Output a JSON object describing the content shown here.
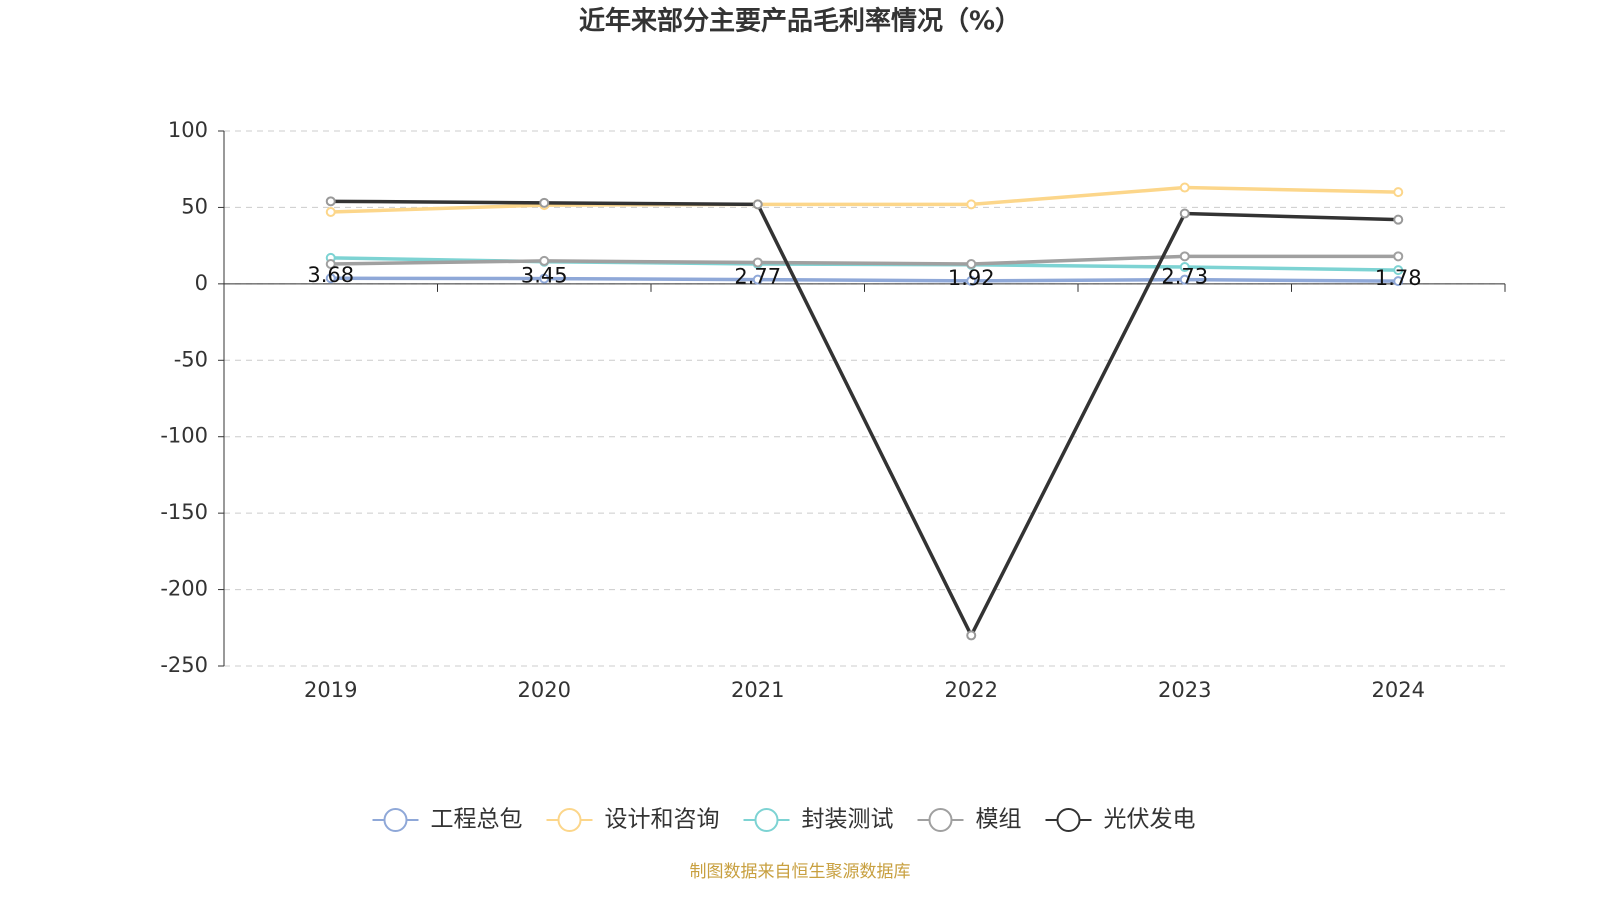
{
  "chart_data": {
    "type": "line",
    "title": "近年来部分主要产品毛利率情况（%）",
    "categories": [
      "2019",
      "2020",
      "2021",
      "2022",
      "2023",
      "2024"
    ],
    "series": [
      {
        "name": "工程总包",
        "color": "#8fa8d8",
        "values": [
          3.68,
          3.45,
          2.77,
          1.92,
          2.73,
          1.78
        ],
        "labels": true
      },
      {
        "name": "设计和咨询",
        "color": "#fcd68a",
        "values": [
          47,
          51.5,
          52,
          52,
          63,
          60
        ]
      },
      {
        "name": "封装测试",
        "color": "#7dd3d3",
        "values": [
          17,
          14.5,
          13,
          12.5,
          11,
          9
        ]
      },
      {
        "name": "模组",
        "color": "#a0a0a0",
        "values": [
          13,
          15,
          14,
          13,
          18,
          18
        ]
      },
      {
        "name": "光伏发电",
        "color": "#333333",
        "values": [
          54,
          53,
          52,
          -230,
          46,
          42
        ]
      }
    ],
    "ylim": [
      -250,
      100
    ],
    "yticks": [
      100,
      50,
      0,
      -50,
      -100,
      -150,
      -200,
      -250
    ],
    "grid": true,
    "legend": "bottom",
    "source": "制图数据来自恒生聚源数据库"
  }
}
